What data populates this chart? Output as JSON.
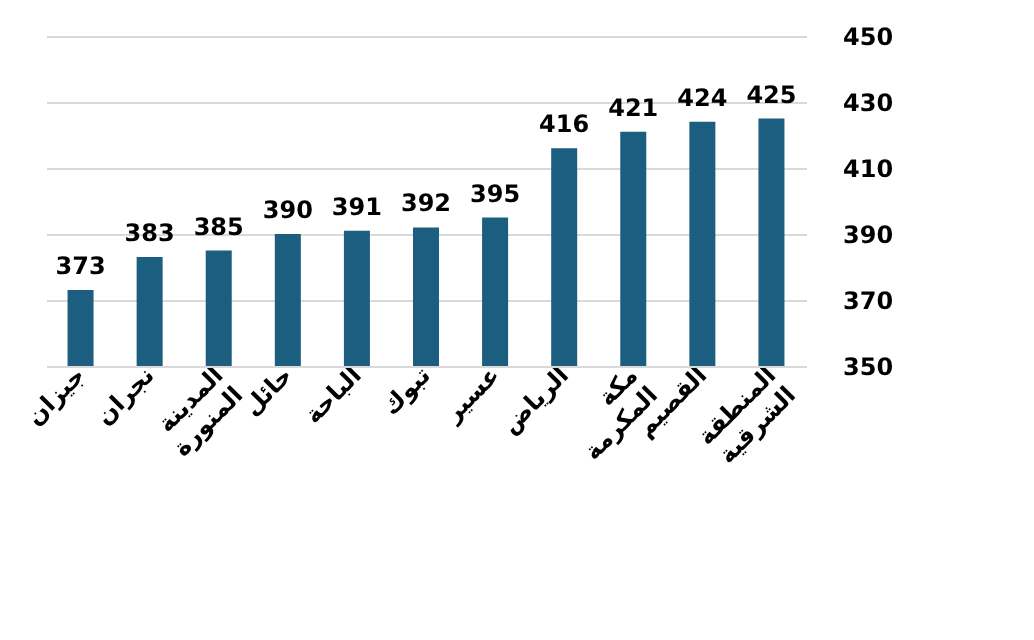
{
  "chart_data": {
    "type": "bar",
    "categories": [
      "جيزان",
      "نجران",
      "المدينة المنورة",
      "حائل",
      "الباحة",
      "تبوك",
      "عسير",
      "الرياض",
      "مكة المكرمة",
      "القصيم",
      "المنطقة الشرقية"
    ],
    "values": [
      373,
      383,
      385,
      390,
      391,
      392,
      395,
      416,
      421,
      424,
      425
    ],
    "color": "#1b5e80",
    "ylim": [
      350,
      450
    ],
    "yticks": [
      350,
      370,
      390,
      410,
      430,
      450
    ],
    "grid": "y",
    "data_labels": true
  }
}
